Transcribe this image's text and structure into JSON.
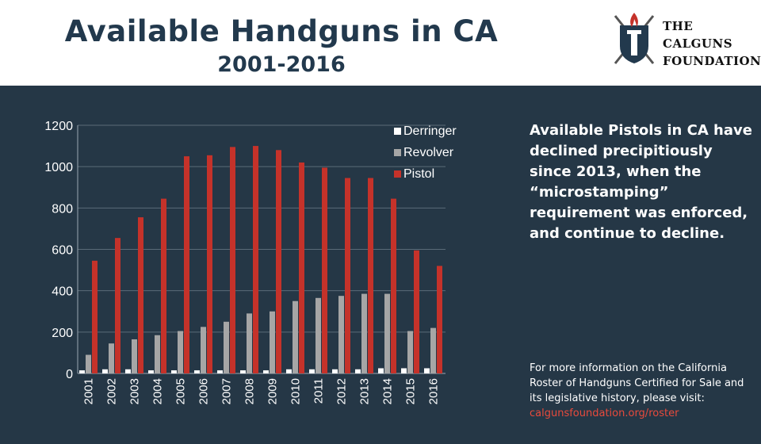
{
  "header": {
    "title": "Available Handguns in CA",
    "subtitle": "2001-2016"
  },
  "logo": {
    "line1": "THE",
    "line2": "CALGUNS",
    "line3": "FOUNDATION",
    "icon": "torch-shield-crossed-swords-icon"
  },
  "side_note": "Available Pistols in CA have declined precipitiously since 2013, when the “microstamping” requirement was enforced, and continue to decline.",
  "footer": {
    "text": "For more information on the California Roster of Handguns Certified for Sale and its legislative history, please visit:",
    "link": "calgunsfoundation.org/roster"
  },
  "colors": {
    "background": "#253746",
    "derringer": "#ffffff",
    "revolver": "#a6a6a6",
    "pistol": "#c5322a",
    "link": "#e84a3c"
  },
  "chart_data": {
    "type": "bar",
    "categories": [
      "2001",
      "2002",
      "2003",
      "2004",
      "2005",
      "2006",
      "2007",
      "2008",
      "2009",
      "2010",
      "2011",
      "2012",
      "2013",
      "2014",
      "2015",
      "2016"
    ],
    "series": [
      {
        "name": "Derringer",
        "values": [
          15,
          20,
          20,
          15,
          15,
          15,
          15,
          15,
          15,
          20,
          20,
          20,
          20,
          25,
          25,
          25
        ]
      },
      {
        "name": "Revolver",
        "values": [
          90,
          145,
          165,
          185,
          205,
          225,
          250,
          290,
          300,
          350,
          365,
          375,
          385,
          385,
          205,
          220
        ]
      },
      {
        "name": "Pistol",
        "values": [
          545,
          655,
          755,
          845,
          1050,
          1055,
          1095,
          1100,
          1080,
          1020,
          995,
          945,
          945,
          845,
          595,
          520
        ]
      }
    ],
    "yticks": [
      0,
      200,
      400,
      600,
      800,
      1000,
      1200
    ],
    "ylim": [
      0,
      1200
    ],
    "grid": true,
    "legend": "top-right"
  }
}
